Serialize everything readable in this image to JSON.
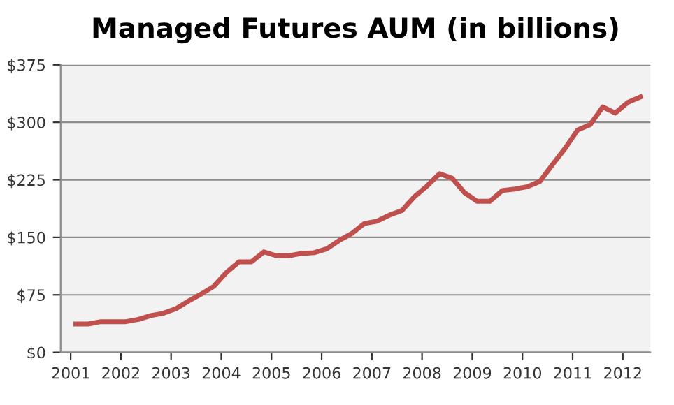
{
  "chart_data": {
    "type": "line",
    "title": "Managed Futures AUM (in billions)",
    "x": [
      2001.1,
      2001.35,
      2001.6,
      2001.85,
      2002.1,
      2002.35,
      2002.6,
      2002.85,
      2003.1,
      2003.35,
      2003.6,
      2003.85,
      2004.1,
      2004.35,
      2004.6,
      2004.85,
      2005.1,
      2005.35,
      2005.6,
      2005.85,
      2006.1,
      2006.35,
      2006.6,
      2006.85,
      2007.1,
      2007.35,
      2007.6,
      2007.85,
      2008.1,
      2008.35,
      2008.6,
      2008.85,
      2009.1,
      2009.35,
      2009.6,
      2009.85,
      2010.1,
      2010.35,
      2010.6,
      2010.85,
      2011.1,
      2011.35,
      2011.6,
      2011.85,
      2012.1,
      2012.35
    ],
    "series": [
      {
        "color": "#c0504d",
        "values": [
          37,
          37,
          40,
          40,
          40,
          43,
          48,
          51,
          57,
          67,
          76,
          86,
          104,
          118,
          118,
          131,
          126,
          126,
          129,
          130,
          135,
          146,
          155,
          168,
          171,
          179,
          185,
          203,
          217,
          233,
          227,
          208,
          197,
          197,
          211,
          213,
          216,
          223,
          245,
          266,
          290,
          297,
          320,
          312,
          326,
          333
        ]
      }
    ],
    "xlim": [
      2000.8,
      2012.55
    ],
    "xticks": [
      2001,
      2002,
      2003,
      2004,
      2005,
      2006,
      2007,
      2008,
      2009,
      2010,
      2011,
      2012
    ],
    "ylim": [
      0,
      375
    ],
    "yticks": [
      {
        "value": 0,
        "label": "$0"
      },
      {
        "value": 75,
        "label": "$75"
      },
      {
        "value": 150,
        "label": "$150"
      },
      {
        "value": 225,
        "label": "$225"
      },
      {
        "value": 300,
        "label": "$300"
      },
      {
        "value": 375,
        "label": "$375"
      }
    ],
    "grid": "y",
    "marker": "none",
    "line_style": "solid",
    "legend": false
  }
}
